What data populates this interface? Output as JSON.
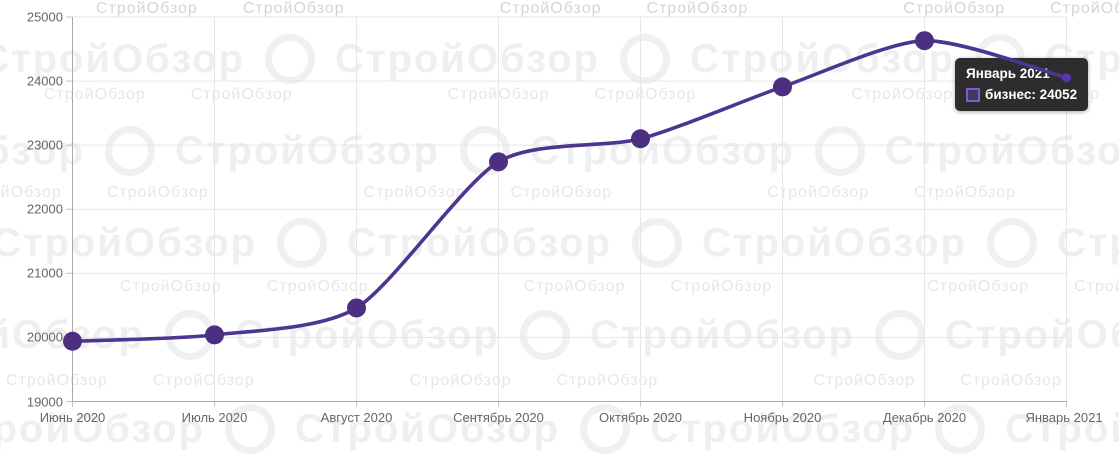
{
  "watermark": {
    "text": "СтройОбзор"
  },
  "chart_data": {
    "type": "line",
    "title": "",
    "xlabel": "",
    "ylabel": "",
    "categories": [
      "Июнь 2020",
      "Июль 2020",
      "Август 2020",
      "Сентябрь 2020",
      "Октябрь 2020",
      "Ноябрь 2020",
      "Декабрь 2020",
      "Январь 2021"
    ],
    "series": [
      {
        "name": "бизнес",
        "color": "#4e3590",
        "point_color": "#4d2f82",
        "values": [
          19940,
          20040,
          20460,
          22740,
          23100,
          23910,
          24630,
          24052
        ]
      }
    ],
    "ylim": [
      19000,
      25000
    ],
    "ytick_step": 1000,
    "yticks": [
      19000,
      20000,
      21000,
      22000,
      23000,
      24000,
      25000
    ],
    "grid": true,
    "legend_position": "none",
    "hovered_point": {
      "category": "Январь 2021",
      "value": 24052
    }
  },
  "tooltip": {
    "title": "Январь 2021",
    "series_label": "бизнес",
    "value": 24052,
    "text": "бизнес: 24052"
  },
  "colors": {
    "line": "#4e3590",
    "point": "#4d2f82",
    "hover_point": "#5a35b4",
    "gridline": "#e6e6e6",
    "axis_line": "#a9a9a9",
    "tick": "#c4c4c4",
    "axis_label": "#666666",
    "tooltip_bg": "#2d2d2d",
    "swatch_border": "#7b5ec6"
  }
}
